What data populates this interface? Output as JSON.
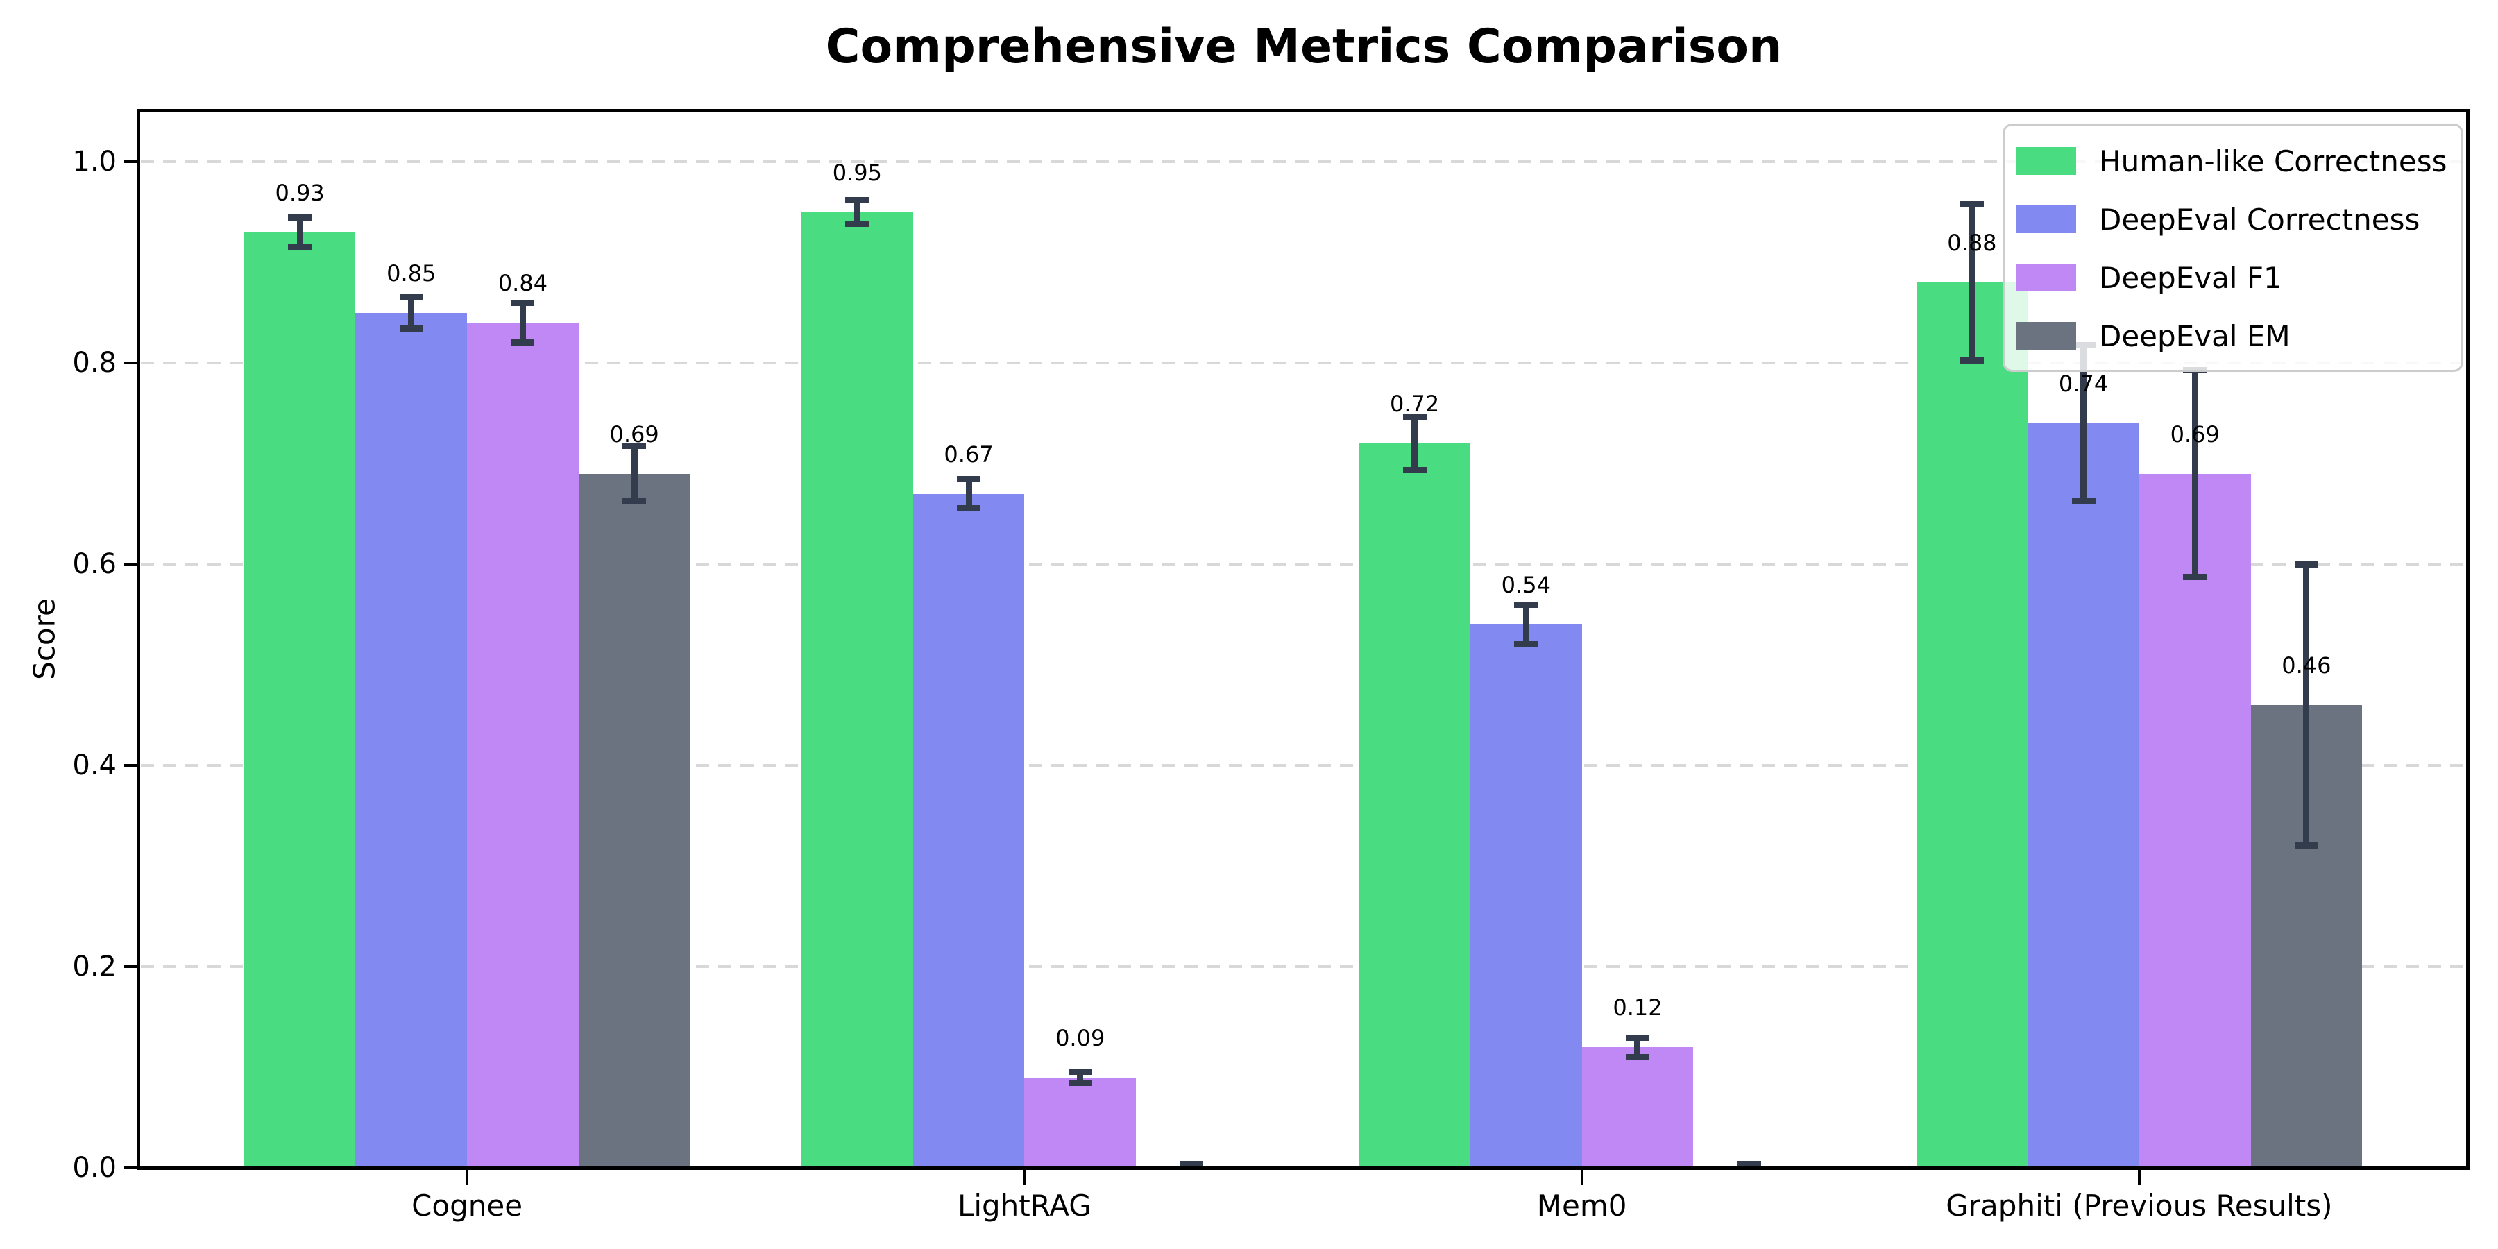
{
  "title": "Comprehensive Metrics Comparison",
  "ylabel": "Score",
  "palette": {
    "human_like": "#4adc81",
    "deepeval_correctness": "#8289f0",
    "deepeval_f1": "#c088f5",
    "deepeval_em": "#6b7280",
    "error_bar": "#333c4d",
    "gridline": "#d8d8d8",
    "spine": "#000000",
    "legend_border": "#cccccc"
  },
  "chart_data": {
    "type": "bar",
    "title": "Comprehensive Metrics Comparison",
    "xlabel": "",
    "ylabel": "Score",
    "ylim": [
      0,
      1.05
    ],
    "yticks": [
      "0.0",
      "0.2",
      "0.4",
      "0.6",
      "0.8",
      "1.0"
    ],
    "ytick_values": [
      0.0,
      0.2,
      0.4,
      0.6,
      0.8,
      1.0
    ],
    "grid": "horizontal-dashed",
    "legend_position": "upper right",
    "categories": [
      "Cognee",
      "LightRAG",
      "Mem0",
      "Graphiti (Previous Results)"
    ],
    "series": [
      {
        "name": "Human-like Correctness",
        "color": "#4adc81",
        "values": [
          0.93,
          0.95,
          0.72,
          0.88
        ],
        "errors": [
          0.015,
          0.012,
          0.027,
          0.078
        ],
        "labels": [
          "0.93",
          "0.95",
          "0.72",
          "0.88"
        ]
      },
      {
        "name": "DeepEval Correctness",
        "color": "#8289f0",
        "values": [
          0.85,
          0.67,
          0.54,
          0.74
        ],
        "errors": [
          0.016,
          0.015,
          0.02,
          0.078
        ],
        "labels": [
          "0.85",
          "0.67",
          "0.54",
          "0.74"
        ]
      },
      {
        "name": "DeepEval F1",
        "color": "#c088f5",
        "values": [
          0.84,
          0.09,
          0.12,
          0.69
        ],
        "errors": [
          0.02,
          0.006,
          0.01,
          0.103
        ],
        "labels": [
          "0.84",
          "0.09",
          "0.12",
          "0.69"
        ]
      },
      {
        "name": "DeepEval EM",
        "color": "#6b7280",
        "values": [
          0.69,
          0.0,
          0.0,
          0.46
        ],
        "errors": [
          0.028,
          0.004,
          0.004,
          0.14
        ],
        "labels": [
          "0.69",
          null,
          null,
          "0.46"
        ]
      }
    ]
  }
}
